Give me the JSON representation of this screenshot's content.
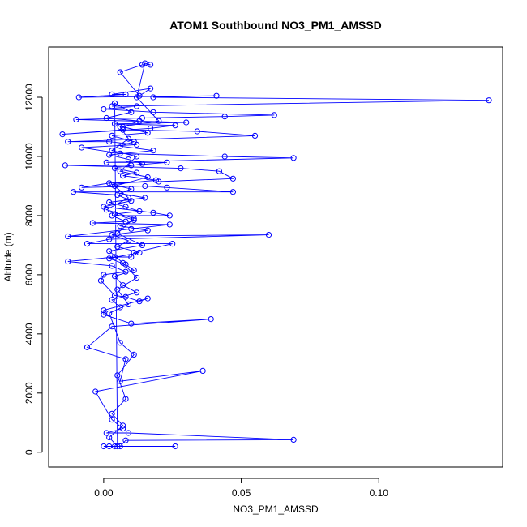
{
  "chart_data": {
    "type": "scatter",
    "title": "ATOM1 Southbound NO3_PM1_AMSSD",
    "xlabel": "NO3_PM1_AMSSD",
    "ylabel": "Altitude (m)",
    "xlim": [
      -0.02,
      0.145
    ],
    "ylim": [
      -500,
      13700
    ],
    "x_ticks": [
      0.0,
      0.05,
      0.1
    ],
    "x_tick_labels": [
      "0.00",
      "0.05",
      "0.10"
    ],
    "y_ticks": [
      0,
      2000,
      4000,
      6000,
      8000,
      10000,
      12000
    ],
    "y_tick_labels": [
      "0",
      "2000",
      "4000",
      "6000",
      "8000",
      "10000",
      "12000"
    ],
    "grid": false,
    "series_color": "#0000ff",
    "series": [
      {
        "style": "points-and-lines",
        "points": [
          [
            0.0,
            200
          ],
          [
            0.002,
            200
          ],
          [
            0.004,
            200
          ],
          [
            0.026,
            200
          ],
          [
            0.006,
            200
          ],
          [
            0.008,
            400
          ],
          [
            0.069,
            420
          ],
          [
            0.009,
            650
          ],
          [
            0.001,
            650
          ],
          [
            0.007,
            800
          ],
          [
            0.003,
            1100
          ],
          [
            -0.003,
            2050
          ],
          [
            0.036,
            2750
          ],
          [
            0.006,
            2400
          ],
          [
            0.008,
            3150
          ],
          [
            -0.006,
            3550
          ],
          [
            0.003,
            4250
          ],
          [
            0.039,
            4500
          ],
          [
            0.01,
            4350
          ],
          [
            0.0,
            4650
          ],
          [
            0.0,
            4800
          ],
          [
            0.016,
            5200
          ],
          [
            0.013,
            5100
          ],
          [
            0.008,
            5250
          ],
          [
            0.004,
            5300
          ],
          [
            -0.001,
            5800
          ],
          [
            0.0,
            6000
          ],
          [
            0.008,
            6100
          ],
          [
            0.003,
            6300
          ],
          [
            -0.013,
            6450
          ],
          [
            0.004,
            6600
          ],
          [
            0.01,
            6600
          ],
          [
            0.011,
            6750
          ],
          [
            0.025,
            7050
          ],
          [
            -0.006,
            7050
          ],
          [
            0.002,
            7200
          ],
          [
            0.06,
            7350
          ],
          [
            -0.013,
            7300
          ],
          [
            0.01,
            7550
          ],
          [
            0.024,
            7700
          ],
          [
            -0.004,
            7750
          ],
          [
            0.008,
            7800
          ],
          [
            0.003,
            8000
          ],
          [
            0.024,
            8000
          ],
          [
            0.018,
            8100
          ],
          [
            0.0,
            8300
          ],
          [
            0.01,
            8500
          ],
          [
            0.005,
            8700
          ],
          [
            -0.011,
            8800
          ],
          [
            0.047,
            8800
          ],
          [
            0.023,
            8950
          ],
          [
            0.015,
            9000
          ],
          [
            -0.008,
            8950
          ],
          [
            0.002,
            9100
          ],
          [
            0.02,
            9150
          ],
          [
            0.047,
            9250
          ],
          [
            0.042,
            9500
          ],
          [
            0.028,
            9600
          ],
          [
            -0.014,
            9700
          ],
          [
            0.01,
            9700
          ],
          [
            0.023,
            9800
          ],
          [
            0.001,
            9800
          ],
          [
            0.069,
            9950
          ],
          [
            0.044,
            10000
          ],
          [
            0.006,
            10100
          ],
          [
            -0.008,
            10300
          ],
          [
            0.012,
            10400
          ],
          [
            0.002,
            10500
          ],
          [
            -0.013,
            10500
          ],
          [
            0.055,
            10700
          ],
          [
            0.034,
            10850
          ],
          [
            0.007,
            10900
          ],
          [
            -0.015,
            10750
          ],
          [
            0.017,
            10950
          ],
          [
            0.026,
            11050
          ],
          [
            0.004,
            11100
          ],
          [
            0.03,
            11150
          ],
          [
            -0.01,
            11250
          ],
          [
            0.014,
            11300
          ],
          [
            0.044,
            11350
          ],
          [
            0.062,
            11400
          ],
          [
            0.018,
            11500
          ],
          [
            0.0,
            11600
          ],
          [
            0.012,
            11700
          ],
          [
            0.003,
            11700
          ],
          [
            0.14,
            11900
          ],
          [
            0.018,
            12000
          ],
          [
            0.041,
            12050
          ],
          [
            -0.009,
            12000
          ],
          [
            0.008,
            12100
          ],
          [
            0.003,
            12100
          ],
          [
            0.017,
            12300
          ],
          [
            0.013,
            12050
          ],
          [
            0.006,
            12850
          ],
          [
            0.014,
            13100
          ],
          [
            0.017,
            13100
          ],
          [
            0.015,
            13150
          ],
          [
            0.012,
            12000
          ],
          [
            0.02,
            11200
          ],
          [
            0.006,
            11000
          ],
          [
            0.009,
            10600
          ],
          [
            0.003,
            10200
          ],
          [
            0.012,
            10000
          ],
          [
            0.006,
            9500
          ],
          [
            0.016,
            9300
          ],
          [
            0.004,
            9000
          ],
          [
            0.009,
            8600
          ],
          [
            0.001,
            8200
          ],
          [
            0.011,
            7900
          ],
          [
            0.005,
            7400
          ],
          [
            0.014,
            7000
          ],
          [
            0.002,
            6800
          ],
          [
            0.007,
            6400
          ],
          [
            0.012,
            5900
          ],
          [
            0.005,
            5500
          ],
          [
            0.009,
            5000
          ],
          [
            0.002,
            4700
          ],
          [
            0.006,
            3700
          ],
          [
            0.011,
            3300
          ],
          [
            0.005,
            2600
          ],
          [
            0.008,
            1800
          ],
          [
            0.003,
            1300
          ],
          [
            0.007,
            900
          ],
          [
            0.002,
            500
          ],
          [
            0.005,
            200
          ],
          [
            0.004,
            11800
          ],
          [
            0.01,
            11500
          ],
          [
            0.001,
            11300
          ],
          [
            0.013,
            11200
          ],
          [
            0.007,
            11000
          ],
          [
            0.016,
            10800
          ],
          [
            0.003,
            10700
          ],
          [
            0.011,
            10500
          ],
          [
            0.006,
            10350
          ],
          [
            0.018,
            10200
          ],
          [
            0.002,
            10050
          ],
          [
            0.009,
            9900
          ],
          [
            0.014,
            9750
          ],
          [
            0.004,
            9600
          ],
          [
            0.012,
            9450
          ],
          [
            0.007,
            9350
          ],
          [
            0.019,
            9200
          ],
          [
            0.003,
            9050
          ],
          [
            0.01,
            8900
          ],
          [
            0.006,
            8750
          ],
          [
            0.015,
            8600
          ],
          [
            0.002,
            8450
          ],
          [
            0.008,
            8300
          ],
          [
            0.013,
            8150
          ],
          [
            0.004,
            8050
          ],
          [
            0.011,
            7850
          ],
          [
            0.006,
            7650
          ],
          [
            0.016,
            7500
          ],
          [
            0.003,
            7350
          ],
          [
            0.009,
            7150
          ],
          [
            0.005,
            6950
          ],
          [
            0.013,
            6750
          ],
          [
            0.002,
            6550
          ],
          [
            0.008,
            6350
          ],
          [
            0.011,
            6150
          ],
          [
            0.004,
            5950
          ],
          [
            0.007,
            5650
          ],
          [
            0.012,
            5400
          ],
          [
            0.003,
            5150
          ],
          [
            0.006,
            4900
          ]
        ]
      }
    ]
  }
}
